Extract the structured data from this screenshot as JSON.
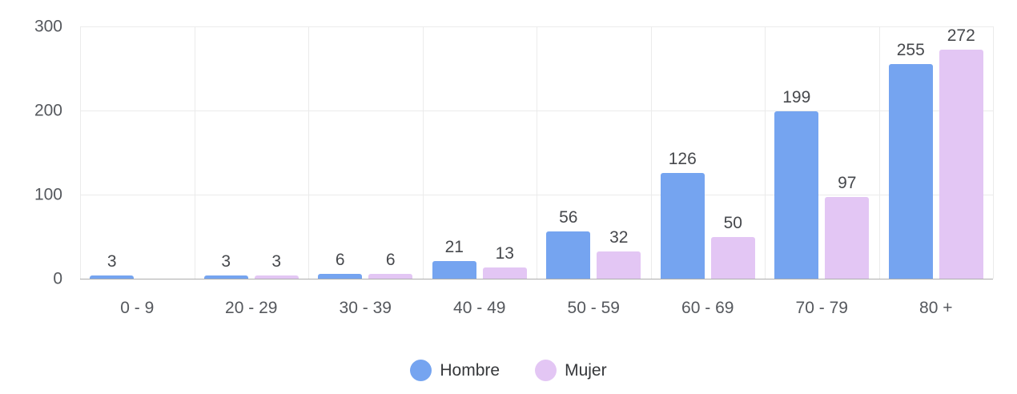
{
  "chart_data": {
    "type": "bar",
    "categories": [
      "0 - 9",
      "20 - 29",
      "30 - 39",
      "40 - 49",
      "50 - 59",
      "60 - 69",
      "70 - 79",
      "80 +"
    ],
    "series": [
      {
        "name": "Hombre",
        "color": "#75a4f0",
        "values": [
          3,
          3,
          6,
          21,
          56,
          126,
          199,
          255
        ]
      },
      {
        "name": "Mujer",
        "color": "#e3c6f4",
        "values": [
          0,
          3,
          6,
          13,
          32,
          50,
          97,
          272
        ]
      }
    ],
    "title": "",
    "xlabel": "",
    "ylabel": "",
    "ylim": [
      0,
      300
    ],
    "yticks": [
      0,
      100,
      200,
      300
    ],
    "grid": true,
    "legend_position": "bottom",
    "value_labels": true,
    "hide_zero_bars": true
  },
  "colors": {
    "background": "#ffffff",
    "gridline": "#ebebeb",
    "axis_line": "#adadad",
    "axis_text": "#55585d",
    "value_text": "#46484c",
    "legend_text": "#35373a",
    "series_hombre": "#75a4f0",
    "series_mujer": "#e3c6f4"
  }
}
